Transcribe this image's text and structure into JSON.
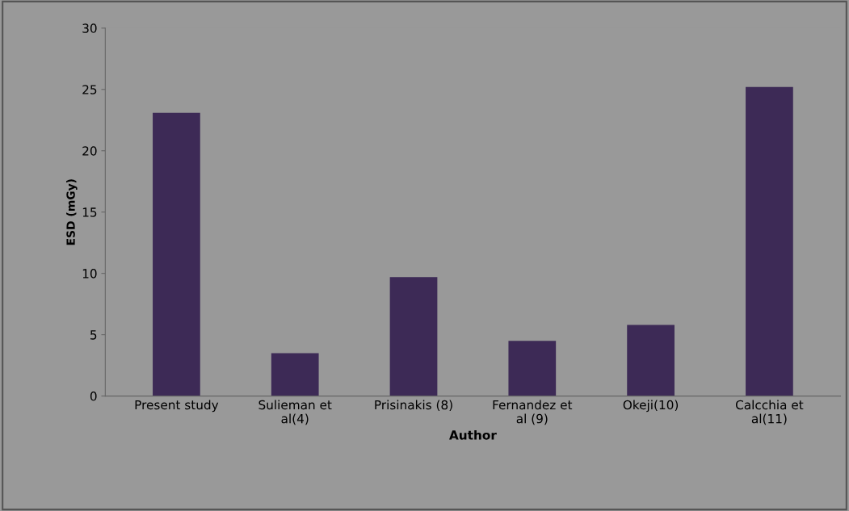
{
  "chart_data": {
    "type": "bar",
    "xlabel": "Author",
    "ylabel": "ESD (mGy)",
    "categories": [
      "Present study",
      "Sulieman et\nal(4)",
      "Prisinakis (8)",
      "Fernandez et\nal (9)",
      "Okeji(10)",
      "Calcchia et\nal(11)"
    ],
    "values": [
      23.1,
      3.5,
      9.7,
      4.5,
      5.8,
      25.2
    ],
    "color": "#3d2a56",
    "ylim": [
      0,
      30
    ],
    "yticks": [
      0,
      5,
      10,
      15,
      20,
      25,
      30
    ],
    "grid": false
  }
}
